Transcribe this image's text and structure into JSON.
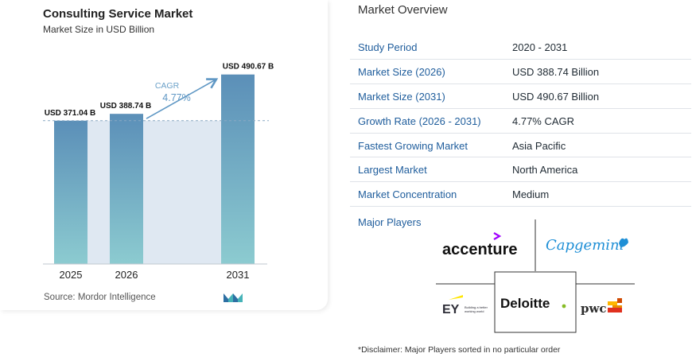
{
  "chart": {
    "title": "Consulting Service Market",
    "subtitle": "Market Size in USD Billion",
    "source": "Source:  Mordor Intelligence",
    "cagr_label": "CAGR",
    "cagr_value": "4.77%"
  },
  "chart_data": {
    "type": "bar",
    "title": "Consulting Service Market",
    "subtitle": "Market Size in USD Billion",
    "categories": [
      "2025",
      "2026",
      "2031"
    ],
    "values": [
      371.04,
      388.74,
      490.67
    ],
    "data_labels": [
      "USD 371.04 B",
      "USD 388.74 B",
      "USD 490.67 B"
    ],
    "unit": "USD Billion",
    "cagr": "4.77%",
    "ylim": [
      0,
      560
    ],
    "colors": {
      "bar_top": "#5b8fb8",
      "bar_bottom": "#8ccbd0",
      "band": "#dfe8f2",
      "arrow": "#5f97c4"
    }
  },
  "overview": {
    "title": "Market Overview",
    "rows": [
      {
        "key": "Study Period",
        "value": "2020 - 2031"
      },
      {
        "key": "Market Size (2026)",
        "value": "USD 388.74 Billion"
      },
      {
        "key": "Market Size (2031)",
        "value": "USD 490.67 Billion"
      },
      {
        "key": "Growth Rate (2026 - 2031)",
        "value": "4.77% CAGR"
      },
      {
        "key": "Fastest Growing Market",
        "value": "Asia Pacific"
      },
      {
        "key": "Largest Market",
        "value": "North America"
      },
      {
        "key": "Market Concentration",
        "value": "Medium"
      }
    ],
    "players_label": "Major Players",
    "players": {
      "accenture": "accenture",
      "capgemini": "Capgemini",
      "ey": "EY",
      "ey_tagline_1": "Building a better",
      "ey_tagline_2": "working world",
      "deloitte": "Deloitte",
      "pwc": "pwc"
    },
    "disclaimer": "*Disclaimer: Major Players sorted in no particular order"
  }
}
